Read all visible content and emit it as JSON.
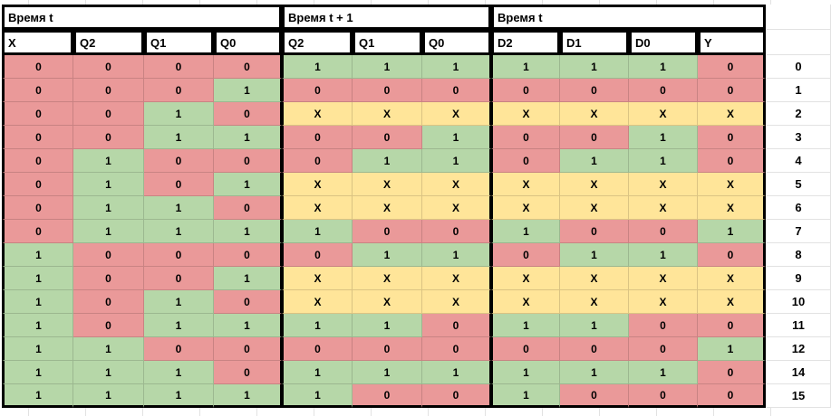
{
  "sheet": {
    "groups": [
      {
        "label": "Время t",
        "columns": [
          "X",
          "Q2",
          "Q1",
          "Q0"
        ]
      },
      {
        "label": "Время t + 1",
        "columns": [
          "Q2",
          "Q1",
          "Q0"
        ]
      },
      {
        "label": "Время t",
        "columns": [
          "D2",
          "D1",
          "D0",
          "Y"
        ]
      }
    ],
    "value_colors": {
      "0": "#ea9999",
      "1": "#b6d7a8",
      "X": "#ffe599"
    },
    "grid_color": "#e2e2e2",
    "rows": [
      {
        "label": "0",
        "cells": [
          "0",
          "0",
          "0",
          "0",
          "1",
          "1",
          "1",
          "1",
          "1",
          "1",
          "0"
        ]
      },
      {
        "label": "1",
        "cells": [
          "0",
          "0",
          "0",
          "1",
          "0",
          "0",
          "0",
          "0",
          "0",
          "0",
          "0"
        ]
      },
      {
        "label": "2",
        "cells": [
          "0",
          "0",
          "1",
          "0",
          "X",
          "X",
          "X",
          "X",
          "X",
          "X",
          "X"
        ]
      },
      {
        "label": "3",
        "cells": [
          "0",
          "0",
          "1",
          "1",
          "0",
          "0",
          "1",
          "0",
          "0",
          "1",
          "0"
        ]
      },
      {
        "label": "4",
        "cells": [
          "0",
          "1",
          "0",
          "0",
          "0",
          "1",
          "1",
          "0",
          "1",
          "1",
          "0"
        ]
      },
      {
        "label": "5",
        "cells": [
          "0",
          "1",
          "0",
          "1",
          "X",
          "X",
          "X",
          "X",
          "X",
          "X",
          "X"
        ]
      },
      {
        "label": "6",
        "cells": [
          "0",
          "1",
          "1",
          "0",
          "X",
          "X",
          "X",
          "X",
          "X",
          "X",
          "X"
        ]
      },
      {
        "label": "7",
        "cells": [
          "0",
          "1",
          "1",
          "1",
          "1",
          "0",
          "0",
          "1",
          "0",
          "0",
          "1"
        ]
      },
      {
        "label": "8",
        "cells": [
          "1",
          "0",
          "0",
          "0",
          "0",
          "1",
          "1",
          "0",
          "1",
          "1",
          "0"
        ]
      },
      {
        "label": "9",
        "cells": [
          "1",
          "0",
          "0",
          "1",
          "X",
          "X",
          "X",
          "X",
          "X",
          "X",
          "X"
        ]
      },
      {
        "label": "10",
        "cells": [
          "1",
          "0",
          "1",
          "0",
          "X",
          "X",
          "X",
          "X",
          "X",
          "X",
          "X"
        ]
      },
      {
        "label": "11",
        "cells": [
          "1",
          "0",
          "1",
          "1",
          "1",
          "1",
          "0",
          "1",
          "1",
          "0",
          "0"
        ]
      },
      {
        "label": "12",
        "cells": [
          "1",
          "1",
          "0",
          "0",
          "0",
          "0",
          "0",
          "0",
          "0",
          "0",
          "1"
        ]
      },
      {
        "label": "14",
        "cells": [
          "1",
          "1",
          "1",
          "0",
          "1",
          "1",
          "1",
          "1",
          "1",
          "1",
          "0"
        ]
      },
      {
        "label": "15",
        "cells": [
          "1",
          "1",
          "1",
          "1",
          "1",
          "0",
          "0",
          "1",
          "0",
          "0",
          "0"
        ]
      }
    ]
  }
}
